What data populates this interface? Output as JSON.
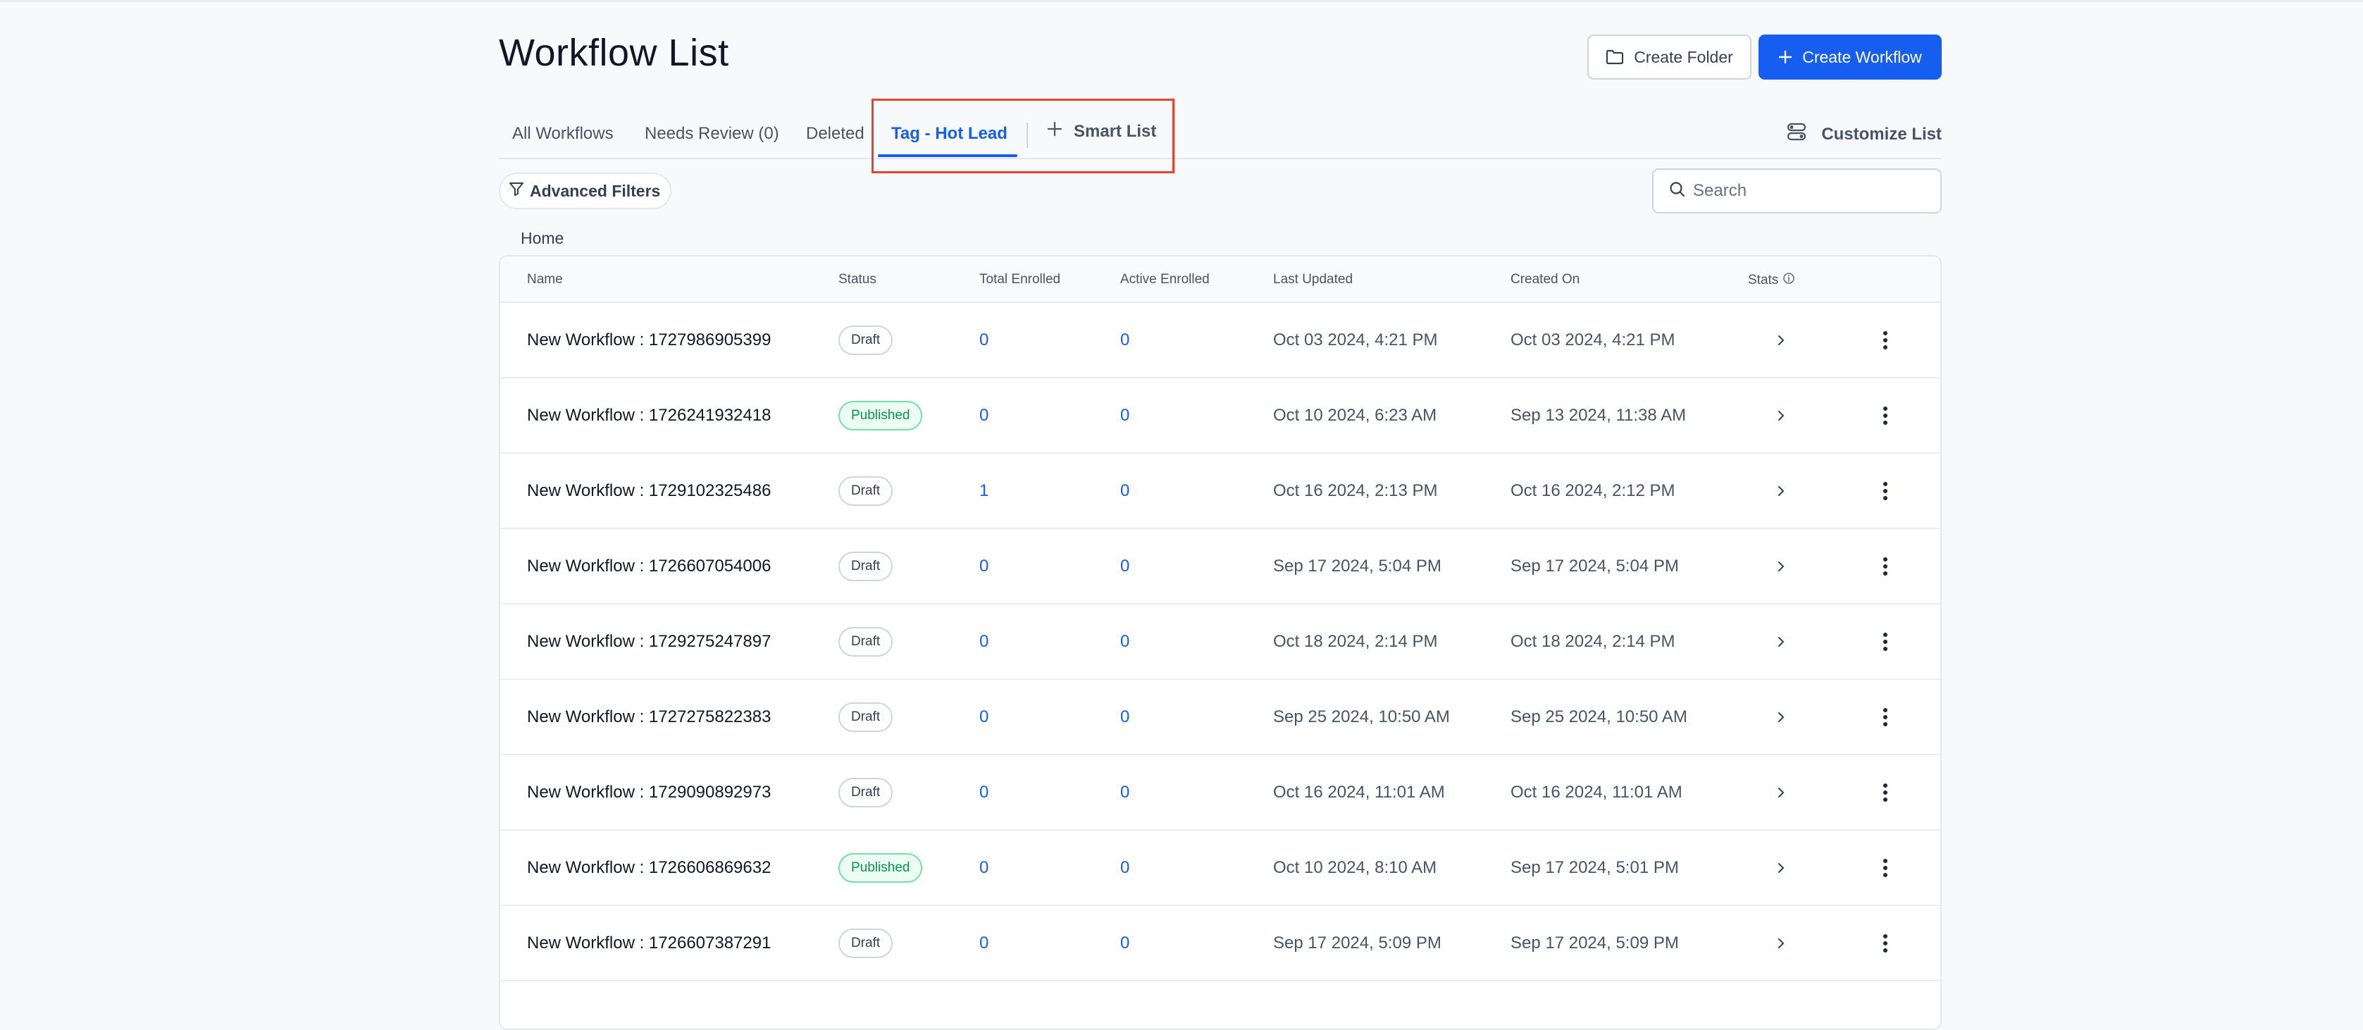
{
  "header": {
    "title": "Workflow List",
    "create_folder_label": "Create Folder",
    "create_workflow_label": "Create Workflow"
  },
  "tabs": [
    {
      "label": "All Workflows",
      "active": false
    },
    {
      "label": "Needs Review (0)",
      "active": false
    },
    {
      "label": "Deleted",
      "active": false
    },
    {
      "label": "Tag - Hot Lead",
      "active": true
    }
  ],
  "smart_list_label": "Smart List",
  "customize_label": "Customize List",
  "filters": {
    "advanced_label": "Advanced Filters",
    "search_placeholder": "Search"
  },
  "breadcrumb": "Home",
  "table": {
    "columns": {
      "name": "Name",
      "status": "Status",
      "total": "Total Enrolled",
      "active": "Active Enrolled",
      "updated": "Last Updated",
      "created": "Created On",
      "stats": "Stats"
    },
    "rows": [
      {
        "name": "New Workflow : 1727986905399",
        "status": "Draft",
        "total": "0",
        "active": "0",
        "updated": "Oct 03 2024, 4:21 PM",
        "created": "Oct 03 2024, 4:21 PM"
      },
      {
        "name": "New Workflow : 1726241932418",
        "status": "Published",
        "total": "0",
        "active": "0",
        "updated": "Oct 10 2024, 6:23 AM",
        "created": "Sep 13 2024, 11:38 AM"
      },
      {
        "name": "New Workflow : 1729102325486",
        "status": "Draft",
        "total": "1",
        "active": "0",
        "updated": "Oct 16 2024, 2:13 PM",
        "created": "Oct 16 2024, 2:12 PM"
      },
      {
        "name": "New Workflow : 1726607054006",
        "status": "Draft",
        "total": "0",
        "active": "0",
        "updated": "Sep 17 2024, 5:04 PM",
        "created": "Sep 17 2024, 5:04 PM"
      },
      {
        "name": "New Workflow : 1729275247897",
        "status": "Draft",
        "total": "0",
        "active": "0",
        "updated": "Oct 18 2024, 2:14 PM",
        "created": "Oct 18 2024, 2:14 PM"
      },
      {
        "name": "New Workflow : 1727275822383",
        "status": "Draft",
        "total": "0",
        "active": "0",
        "updated": "Sep 25 2024, 10:50 AM",
        "created": "Sep 25 2024, 10:50 AM"
      },
      {
        "name": "New Workflow : 1729090892973",
        "status": "Draft",
        "total": "0",
        "active": "0",
        "updated": "Oct 16 2024, 11:01 AM",
        "created": "Oct 16 2024, 11:01 AM"
      },
      {
        "name": "New Workflow : 1726606869632",
        "status": "Published",
        "total": "0",
        "active": "0",
        "updated": "Oct 10 2024, 8:10 AM",
        "created": "Sep 17 2024, 5:01 PM"
      },
      {
        "name": "New Workflow : 1726607387291",
        "status": "Draft",
        "total": "0",
        "active": "0",
        "updated": "Sep 17 2024, 5:09 PM",
        "created": "Sep 17 2024, 5:09 PM"
      }
    ]
  },
  "colors": {
    "accent": "#155eef",
    "highlight": "#e5432f",
    "published_text": "#079455"
  }
}
